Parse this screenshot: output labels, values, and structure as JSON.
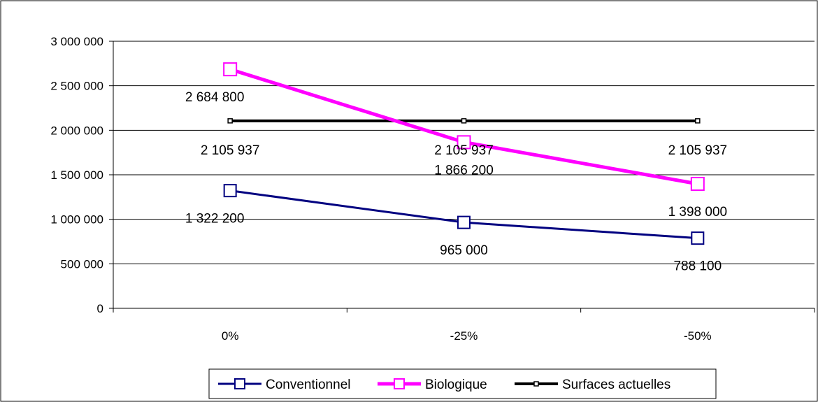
{
  "chart_data": {
    "type": "line",
    "title": "",
    "xlabel": "",
    "ylabel": "",
    "categories": [
      "0%",
      "-25%",
      "-50%"
    ],
    "ylim": [
      0,
      3000000
    ],
    "yticks": [
      "0",
      "500 000",
      "1 000 000",
      "1 500 000",
      "2 000 000",
      "2 500 000",
      "3 000 000"
    ],
    "grid": "horizontal",
    "legend_position": "bottom",
    "series": [
      {
        "name": "Conventionnel",
        "values": [
          1322200,
          965000,
          788100
        ],
        "labels": [
          "1 322 200",
          "965 000",
          "788 100"
        ],
        "color": "#000080"
      },
      {
        "name": "Biologique",
        "values": [
          2684800,
          1866200,
          1398000
        ],
        "labels": [
          "2 684 800",
          "1 866 200",
          "1 398 000"
        ],
        "color": "#FF00FF"
      },
      {
        "name": "Surfaces actuelles",
        "values": [
          2105937,
          2105937,
          2105937
        ],
        "labels": [
          "2 105 937",
          "2 105 937",
          "2 105 937"
        ],
        "color": "#000000"
      }
    ]
  }
}
